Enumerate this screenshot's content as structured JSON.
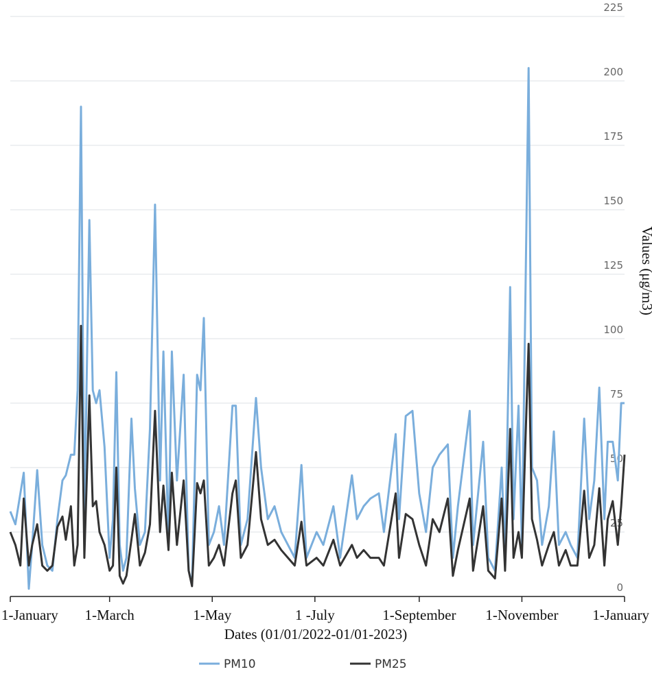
{
  "chart_data": {
    "type": "line",
    "x_label": "Dates (01/01/2022-01/01-2023)",
    "y_label": "Values (μg/m3)",
    "x": [
      0,
      3,
      6,
      8,
      11,
      13,
      16,
      19,
      22,
      25,
      28,
      31,
      33,
      36,
      38,
      40,
      42,
      44,
      47,
      49,
      51,
      53,
      56,
      59,
      61,
      63,
      65,
      67,
      69,
      72,
      74,
      77,
      80,
      83,
      86,
      89,
      91,
      94,
      96,
      99,
      103,
      106,
      108,
      111,
      113,
      115,
      118,
      121,
      124,
      127,
      132,
      134,
      137,
      141,
      146,
      149,
      153,
      157,
      161,
      165,
      169,
      173,
      176,
      182,
      186,
      192,
      196,
      203,
      206,
      210,
      214,
      219,
      222,
      229,
      231,
      235,
      239,
      243,
      247,
      251,
      255,
      260,
      263,
      266,
      273,
      275,
      281,
      284,
      288,
      292,
      294,
      297,
      299,
      302,
      304,
      306,
      308,
      310,
      313,
      316,
      320,
      323,
      326,
      330,
      333,
      337,
      341,
      344,
      347,
      350,
      353,
      355,
      358,
      361,
      363,
      365
    ],
    "series": [
      {
        "name": "PM10",
        "color": "#7aaedc",
        "values": [
          33,
          28,
          40,
          48,
          3,
          20,
          49,
          20,
          12,
          10,
          30,
          45,
          47,
          55,
          55,
          80,
          190,
          30,
          146,
          80,
          75,
          80,
          58,
          15,
          30,
          87,
          20,
          10,
          15,
          69,
          42,
          20,
          25,
          65,
          152,
          45,
          95,
          20,
          95,
          45,
          86,
          10,
          5,
          86,
          80,
          108,
          20,
          25,
          35,
          20,
          74,
          74,
          20,
          30,
          77,
          50,
          30,
          35,
          25,
          20,
          15,
          51,
          15,
          25,
          20,
          35,
          15,
          47,
          30,
          35,
          38,
          40,
          25,
          63,
          30,
          70,
          72,
          40,
          25,
          50,
          55,
          59,
          15,
          35,
          72,
          20,
          60,
          15,
          10,
          50,
          15,
          120,
          30,
          74,
          20,
          111,
          205,
          50,
          45,
          20,
          35,
          64,
          20,
          25,
          20,
          15,
          69,
          30,
          45,
          81,
          30,
          60,
          60,
          45,
          75,
          75
        ]
      },
      {
        "name": "PM25",
        "color": "#333333",
        "values": [
          25,
          20,
          12,
          38,
          12,
          20,
          28,
          12,
          10,
          12,
          27,
          31,
          22,
          35,
          12,
          20,
          105,
          15,
          78,
          35,
          37,
          25,
          20,
          10,
          12,
          50,
          8,
          5,
          8,
          22,
          32,
          12,
          17,
          28,
          72,
          25,
          43,
          18,
          48,
          20,
          45,
          10,
          4,
          44,
          40,
          45,
          12,
          15,
          20,
          12,
          40,
          45,
          15,
          20,
          56,
          30,
          20,
          22,
          18,
          15,
          12,
          29,
          12,
          15,
          12,
          22,
          12,
          20,
          15,
          18,
          15,
          15,
          12,
          40,
          15,
          32,
          30,
          20,
          12,
          30,
          25,
          38,
          8,
          18,
          38,
          10,
          35,
          10,
          7,
          38,
          10,
          65,
          15,
          25,
          15,
          58,
          98,
          30,
          22,
          12,
          20,
          25,
          12,
          18,
          12,
          12,
          41,
          15,
          20,
          42,
          12,
          30,
          37,
          20,
          35,
          55
        ]
      }
    ],
    "xlim": [
      0,
      365
    ],
    "xticks": [
      {
        "value": 0,
        "label": "1-January"
      },
      {
        "value": 59,
        "label": "1-March"
      },
      {
        "value": 120,
        "label": "1-May"
      },
      {
        "value": 181,
        "label": "1 -July"
      },
      {
        "value": 243,
        "label": "1-September"
      },
      {
        "value": 304,
        "label": "1-November"
      },
      {
        "value": 365,
        "label": "1-January"
      }
    ],
    "ylim": [
      0,
      225
    ],
    "yticks": [
      0,
      25,
      50,
      75,
      100,
      125,
      150,
      175,
      200,
      225
    ],
    "grid": true,
    "legend": "bottom"
  }
}
